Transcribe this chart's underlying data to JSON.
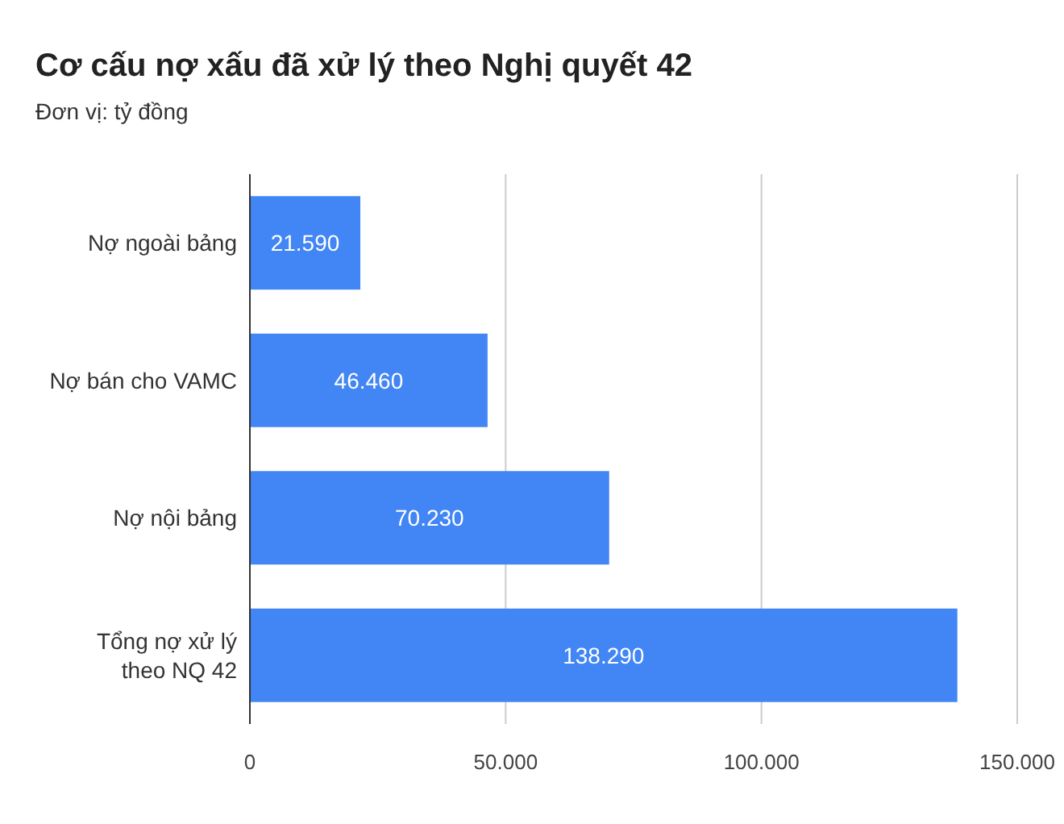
{
  "chart_data": {
    "type": "bar",
    "orientation": "horizontal",
    "title": "Cơ cấu nợ xấu đã xử lý theo Nghị quyết 42",
    "subtitle": "Đơn vị: tỷ đồng",
    "categories": [
      "Nợ ngoài bảng",
      "Nợ bán cho VAMC",
      "Nợ nội bảng",
      "Tổng nợ xử lý theo NQ 42"
    ],
    "values": [
      21590,
      46460,
      70230,
      138290
    ],
    "color": "#4285f4",
    "value_labels": [
      "21.590",
      "46.460",
      "70.230",
      "138.290"
    ],
    "xlim": [
      0,
      150000
    ],
    "xticks": [
      0,
      {
        "value": 50000,
        "label": "50.000"
      },
      {
        "value": 100000,
        "label": "100.000"
      },
      {
        "value": 150000,
        "label": "150.000"
      }
    ],
    "grid": "x"
  }
}
